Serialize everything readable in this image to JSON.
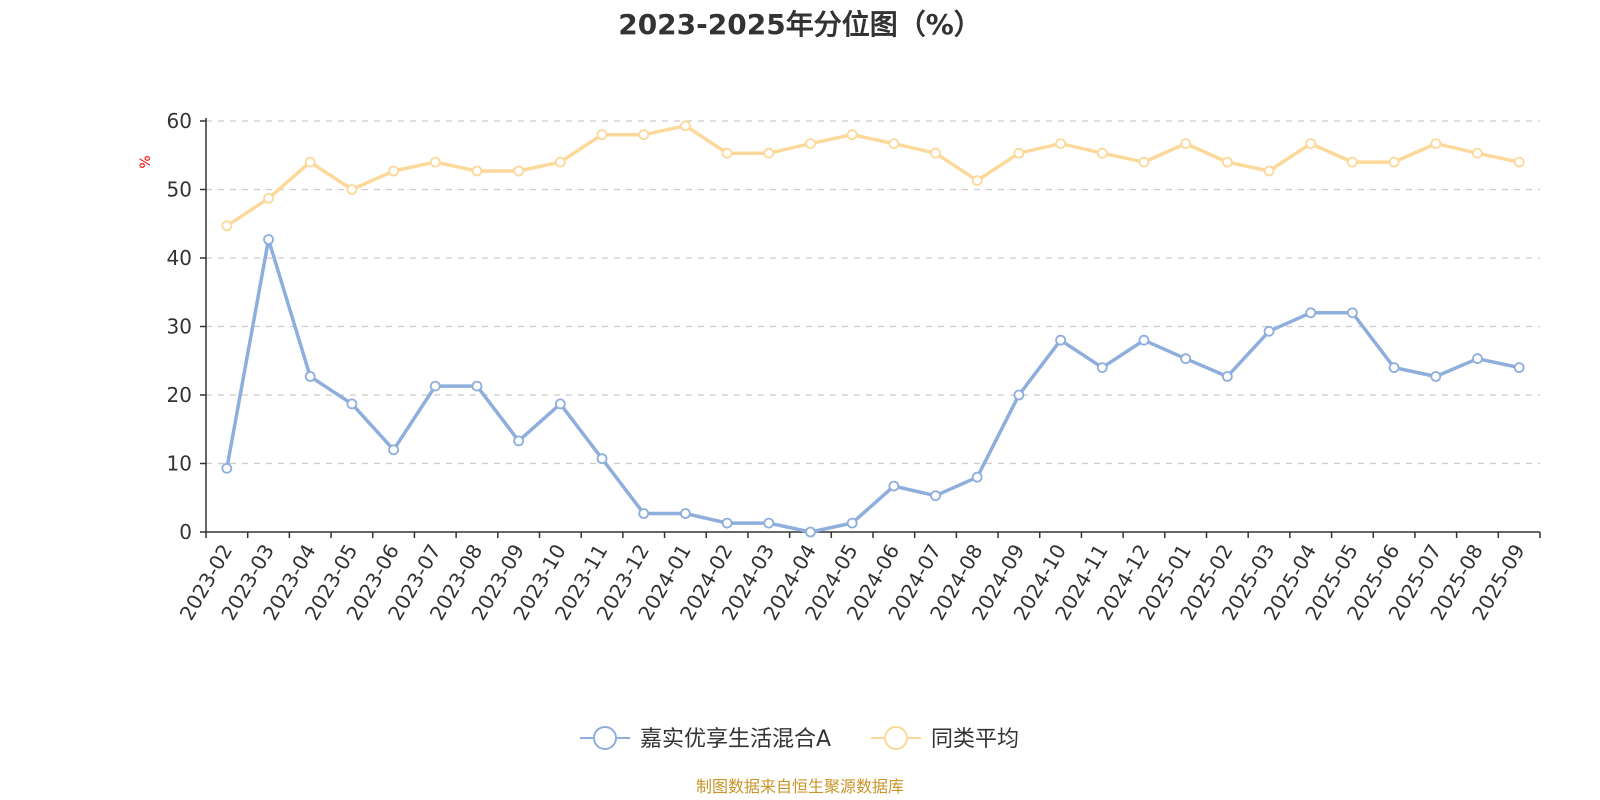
{
  "chart_data": {
    "type": "line",
    "title": "2023-2025年分位图（%）",
    "ylabel": "%",
    "xlabel": "",
    "ylim": [
      0,
      60
    ],
    "yticks": [
      0,
      10,
      20,
      30,
      40,
      50,
      60
    ],
    "grid": true,
    "legend_position": "bottom-center",
    "categories": [
      "2023-02",
      "2023-03",
      "2023-04",
      "2023-05",
      "2023-06",
      "2023-07",
      "2023-08",
      "2023-09",
      "2023-10",
      "2023-11",
      "2023-12",
      "2024-01",
      "2024-02",
      "2024-03",
      "2024-04",
      "2024-05",
      "2024-06",
      "2024-07",
      "2024-08",
      "2024-09",
      "2024-10",
      "2024-11",
      "2024-12",
      "2025-01",
      "2025-02",
      "2025-03",
      "2025-04",
      "2025-05",
      "2025-06",
      "2025-07",
      "2025-08",
      "2025-09"
    ],
    "series": [
      {
        "name": "嘉实优享生活混合A",
        "color": "#8eaedb",
        "values": [
          9.3,
          42.7,
          22.7,
          18.7,
          12.0,
          21.3,
          21.3,
          13.3,
          18.7,
          10.7,
          2.7,
          2.7,
          1.3,
          1.3,
          0.0,
          1.3,
          6.7,
          5.3,
          8.0,
          20.0,
          28.0,
          24.0,
          28.0,
          25.3,
          22.7,
          29.3,
          32.0,
          32.0,
          24.0,
          22.7,
          25.3,
          24.0
        ]
      },
      {
        "name": "同类平均",
        "color": "#fcd99a",
        "values": [
          44.7,
          48.7,
          54.0,
          50.0,
          52.7,
          54.0,
          52.7,
          52.7,
          54.0,
          58.0,
          58.0,
          59.3,
          55.3,
          55.3,
          56.7,
          58.0,
          56.7,
          55.3,
          51.3,
          55.3,
          56.7,
          55.3,
          54.0,
          56.7,
          54.0,
          52.7,
          56.7,
          54.0,
          54.0,
          56.7,
          55.3,
          54.0
        ]
      }
    ]
  },
  "source_text": "制图数据来自恒生聚源数据库",
  "colors": {
    "axis": "#333333",
    "grid": "#cccccc",
    "unit_label": "#ff0000",
    "source_text": "#c9952a"
  }
}
